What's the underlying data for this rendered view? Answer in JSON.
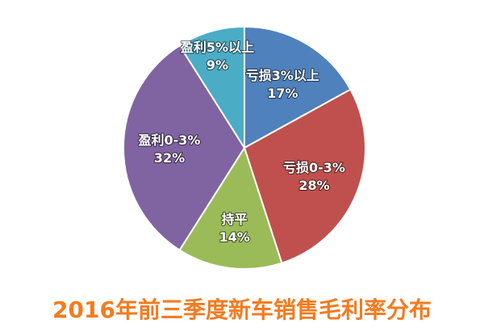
{
  "chart_data": {
    "type": "pie",
    "title": "2016年前三季度新车销售毛利率分布",
    "slices": [
      {
        "label": "亏损3%以上",
        "value": 17,
        "value_label": "17%",
        "color": "#4f81bd"
      },
      {
        "label": "亏损0-3%",
        "value": 28,
        "value_label": "28%",
        "color": "#c0504d"
      },
      {
        "label": "持平",
        "value": 14,
        "value_label": "14%",
        "color": "#9bbb59"
      },
      {
        "label": "盈利0-3%",
        "value": 32,
        "value_label": "32%",
        "color": "#8064a2"
      },
      {
        "label": "盈利5%以上",
        "value": 9,
        "value_label": "9%",
        "color": "#4bacc6"
      }
    ],
    "start_angle_deg": 0,
    "direction": "clockwise",
    "legend": "none"
  }
}
